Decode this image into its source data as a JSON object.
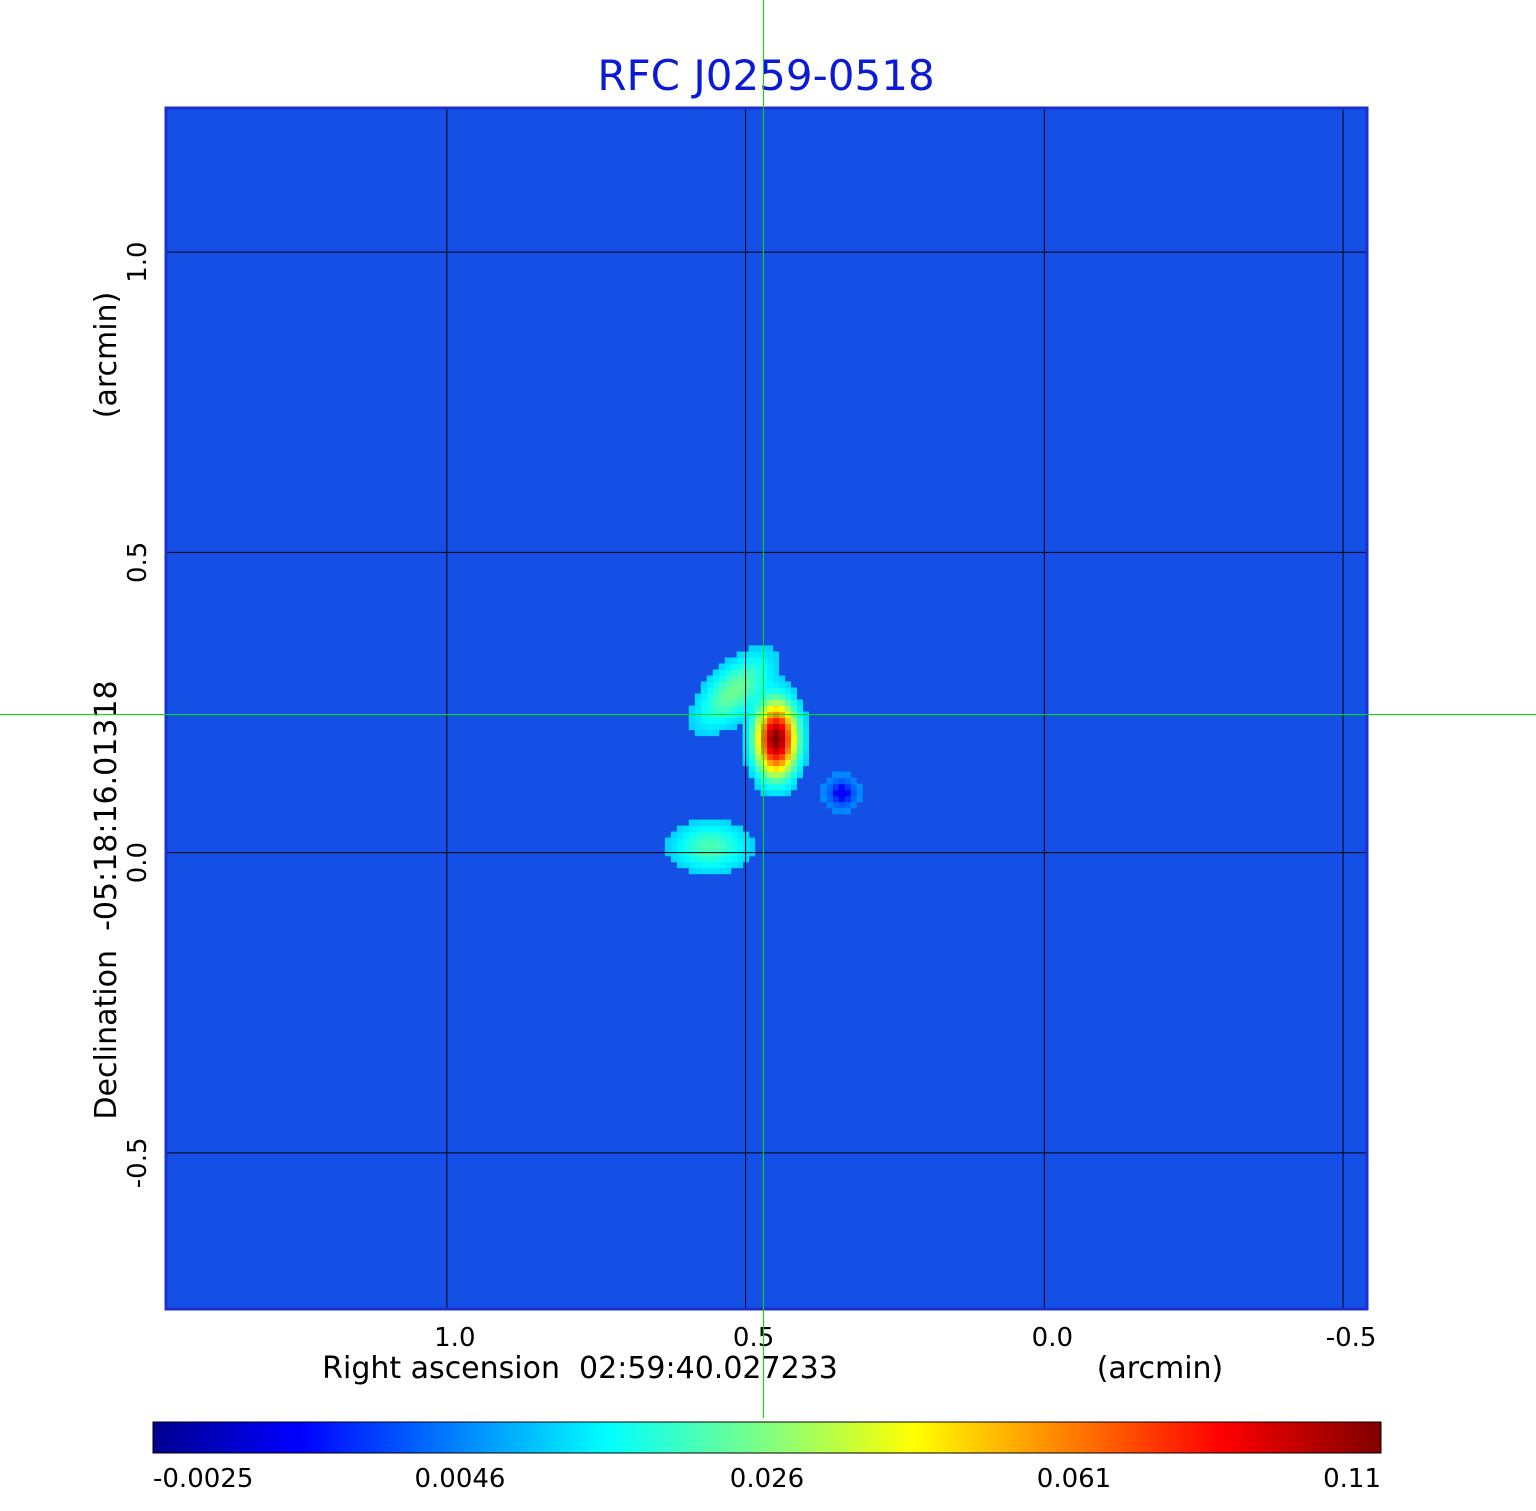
{
  "chart_data": {
    "type": "heatmap",
    "title": "RFC J0259-0518",
    "xlabel": "Right ascension  02:59:40.027233",
    "xunit": "(arcmin)",
    "ylabel": "Declination  -05:18:16.01318",
    "yunit": "(arcmin)",
    "xlim": [
      1.47,
      -0.54
    ],
    "ylim": [
      -0.76,
      1.24
    ],
    "x_ticks": [
      {
        "value": 1.0,
        "label": "1.0"
      },
      {
        "value": 0.5,
        "label": "0.5"
      },
      {
        "value": 0.0,
        "label": "0.0"
      },
      {
        "value": -0.5,
        "label": "-0.5"
      }
    ],
    "y_ticks": [
      {
        "value": 1.0,
        "label": "1.0"
      },
      {
        "value": 0.5,
        "label": "0.5"
      },
      {
        "value": 0.0,
        "label": "0.0"
      },
      {
        "value": -0.5,
        "label": "-0.5"
      }
    ],
    "grid": true,
    "crosshair": {
      "x": 0.47,
      "y": 0.23,
      "color": "#00e000"
    },
    "colormap": "jet",
    "colorbar": {
      "min": -0.0025,
      "max": 0.11,
      "tick_labels": [
        "-0.0025",
        "0.0046",
        "0.026",
        "0.061",
        "0.11"
      ]
    },
    "features": [
      {
        "kind": "peak",
        "x": 0.45,
        "y": 0.19,
        "value": 0.11
      },
      {
        "kind": "extension",
        "x": 0.52,
        "y": 0.27,
        "value": 0.012
      },
      {
        "kind": "component",
        "x": 0.56,
        "y": 0.01,
        "value": 0.009
      },
      {
        "kind": "negative",
        "x": 0.34,
        "y": 0.1,
        "value": -0.0025
      }
    ]
  }
}
